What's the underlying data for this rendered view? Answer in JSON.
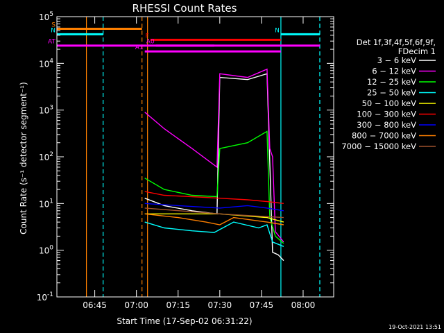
{
  "chart_data": {
    "type": "line",
    "title": "RHESSI Count Rates",
    "xlabel": "Start Time (17-Sep-02 06:31:22)",
    "ylabel": "Count Rate (s⁻¹ detector segment⁻¹)",
    "x_unit": "minutes",
    "xlim": [
      "06:31:22",
      "08:11:00"
    ],
    "ylim": [
      0.1,
      100000
    ],
    "y_scale": "log",
    "x_ticks": [
      "06:45",
      "07:00",
      "07:15",
      "07:30",
      "07:45",
      "08:00"
    ],
    "y_ticks": [
      {
        "base": "10",
        "exp": "-1"
      },
      {
        "base": "10",
        "exp": "0"
      },
      {
        "base": "10",
        "exp": "1"
      },
      {
        "base": "10",
        "exp": "2"
      },
      {
        "base": "10",
        "exp": "3"
      },
      {
        "base": "10",
        "exp": "4"
      },
      {
        "base": "10",
        "exp": "5"
      }
    ],
    "legend_title": [
      "Det 1f,3f,4f,5f,6f,9f,",
      "FDecim 1"
    ],
    "legend_position": "right",
    "series": [
      {
        "name": "3 − 6 keV",
        "color": "#ffffff",
        "x": [
          "07:03",
          "07:10",
          "07:20",
          "07:29",
          "07:30",
          "07:40",
          "07:47",
          "07:49",
          "07:51",
          "07:53"
        ],
        "y": [
          13,
          9,
          7,
          6,
          5000,
          4500,
          6000,
          0.9,
          0.8,
          0.6
        ]
      },
      {
        "name": "6 − 12 keV",
        "color": "#ff00ff",
        "x": [
          "07:03",
          "07:10",
          "07:20",
          "07:29",
          "07:30",
          "07:40",
          "07:47",
          "07:48",
          "07:49",
          "07:50",
          "07:53"
        ],
        "y": [
          900,
          400,
          150,
          60,
          6000,
          5000,
          7500,
          150,
          100,
          2.5,
          1.5
        ]
      },
      {
        "name": "12 − 25 keV",
        "color": "#00ff00",
        "x": [
          "07:03",
          "07:10",
          "07:20",
          "07:29",
          "07:30",
          "07:40",
          "07:47",
          "07:48",
          "07:50",
          "07:53"
        ],
        "y": [
          35,
          20,
          15,
          14,
          150,
          200,
          350,
          5,
          2,
          1.4
        ]
      },
      {
        "name": "25 − 50 keV",
        "color": "#00ffff",
        "x": [
          "07:03",
          "07:10",
          "07:20",
          "07:28",
          "07:35",
          "07:44",
          "07:47",
          "07:49",
          "07:53"
        ],
        "y": [
          4,
          3,
          2.6,
          2.4,
          4,
          3,
          3.5,
          1.5,
          1.2
        ]
      },
      {
        "name": "50 − 100 keV",
        "color": "#ffff00",
        "x": [
          "07:03",
          "07:30",
          "07:47",
          "07:53"
        ],
        "y": [
          6,
          6,
          5,
          4
        ]
      },
      {
        "name": "100 − 300 keV",
        "color": "#ff0000",
        "x": [
          "07:03",
          "07:10",
          "07:20",
          "07:30",
          "07:40",
          "07:47",
          "07:53"
        ],
        "y": [
          18,
          15,
          14,
          13,
          12,
          11,
          10
        ]
      },
      {
        "name": "300 − 800 keV",
        "color": "#0000ff",
        "x": [
          "07:03",
          "07:15",
          "07:30",
          "07:40",
          "07:47",
          "07:53"
        ],
        "y": [
          10,
          9,
          8,
          9,
          8,
          7
        ]
      },
      {
        "name": "800 − 7000 keV",
        "color": "#ff8000",
        "x": [
          "07:03",
          "07:15",
          "07:25",
          "07:30",
          "07:35",
          "07:47",
          "07:53"
        ],
        "y": [
          6,
          5,
          4,
          3.5,
          5,
          4,
          3.5
        ]
      },
      {
        "name": "7000 − 15000 keV",
        "color": "#a0522d",
        "x": [
          "07:03",
          "07:30",
          "07:53"
        ],
        "y": [
          8,
          6,
          5
        ]
      }
    ],
    "flags": [
      {
        "label": "S",
        "color": "#ff8000",
        "y": 55000,
        "x_start": "06:31:22",
        "x_end": "07:02"
      },
      {
        "label": "N",
        "color": "#00ffff",
        "y": 42000,
        "x_start": "06:31:22",
        "x_end": "06:48"
      },
      {
        "label": "N",
        "color": "#00ffff",
        "y": 42000,
        "x_start": "07:52",
        "x_end": "08:06"
      },
      {
        "label": "F",
        "color": "#ff0000",
        "y": 32000,
        "x_start": "07:05",
        "x_end": "07:52"
      },
      {
        "label": "AT",
        "color": "#ff00ff",
        "y": 24000,
        "x_start": "06:31:22",
        "x_end": "08:06"
      },
      {
        "label": "A1",
        "color": "#ff00ff",
        "y": 18000,
        "x_start": "07:03",
        "x_end": "07:52"
      },
      {
        "label": "A0",
        "color": "#ff00ff",
        "y": 24000,
        "x_start": "07:07",
        "x_end": "07:28"
      }
    ],
    "vlines": [
      {
        "x": "06:42",
        "color": "#ff8000",
        "style": "solid"
      },
      {
        "x": "06:48",
        "color": "#00ffff",
        "style": "dashed"
      },
      {
        "x": "07:02",
        "color": "#ff8000",
        "style": "dashed"
      },
      {
        "x": "07:04",
        "color": "#ff8000",
        "style": "solid"
      },
      {
        "x": "07:52",
        "color": "#00ffff",
        "style": "solid"
      },
      {
        "x": "08:06",
        "color": "#00ffff",
        "style": "dashed"
      }
    ],
    "footer": "19-Oct-2021 13:51"
  }
}
